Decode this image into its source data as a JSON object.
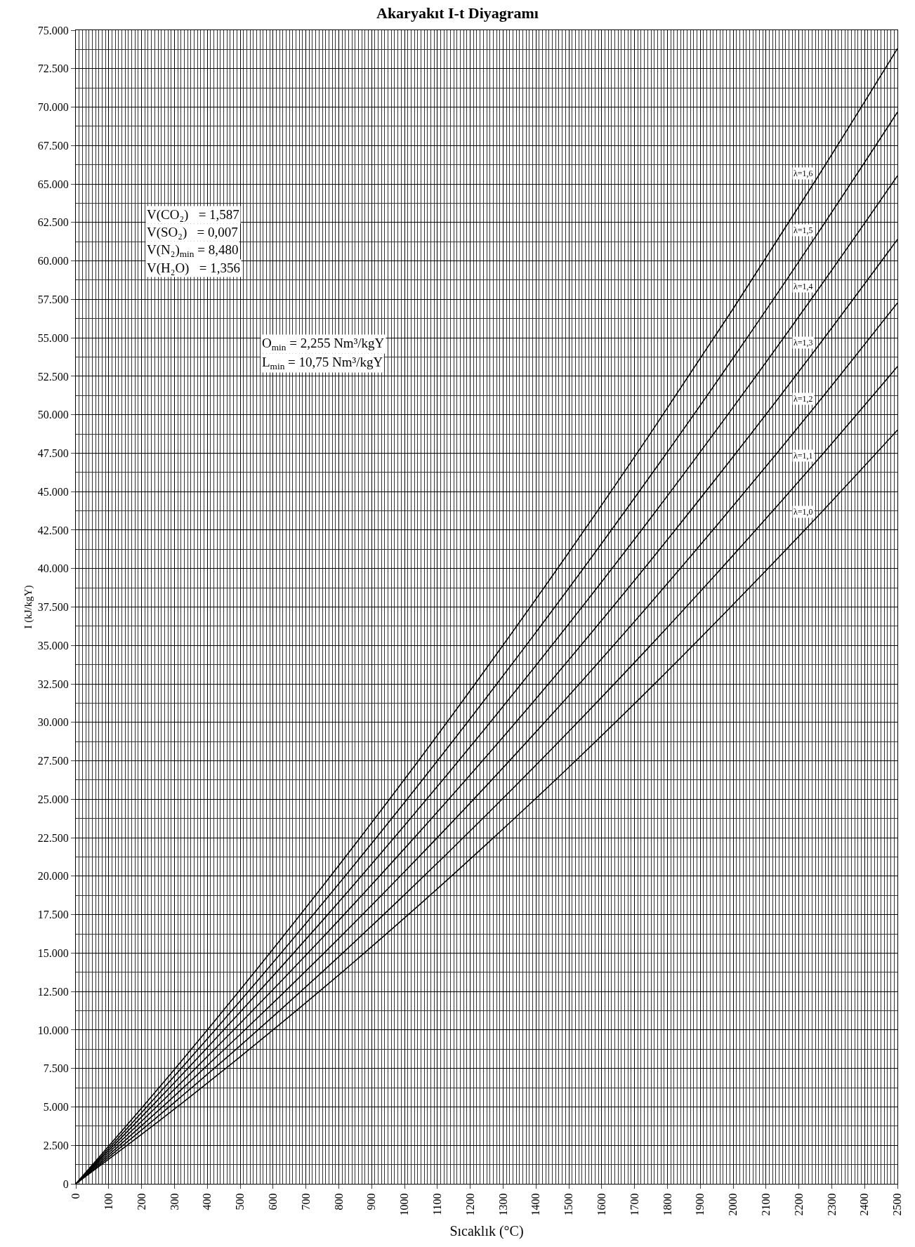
{
  "chart_data": {
    "type": "line",
    "title": "Akaryakıt I-t Diyagramı",
    "xlabel": "Sıcaklık (°C)",
    "ylabel": "I (kJ/kgY)",
    "x": [
      0,
      250,
      500,
      750,
      1000,
      1250,
      1500,
      1750,
      2000,
      2250,
      2500
    ],
    "series": [
      {
        "name": "λ=1,6",
        "color": "#000000",
        "values": [
          0,
          6170,
          12610,
          19320,
          26290,
          33540,
          41050,
          48840,
          56890,
          65210,
          73800
        ]
      },
      {
        "name": "λ=1,5",
        "color": "#000000",
        "values": [
          0,
          5810,
          11880,
          18210,
          24790,
          31630,
          38720,
          46080,
          53680,
          61550,
          69670
        ]
      },
      {
        "name": "λ=1,4",
        "color": "#000000",
        "values": [
          0,
          5460,
          11160,
          17100,
          23290,
          29720,
          36400,
          43310,
          50480,
          57880,
          65530
        ]
      },
      {
        "name": "λ=1,3",
        "color": "#000000",
        "values": [
          0,
          5100,
          10430,
          15990,
          21790,
          27810,
          34070,
          40550,
          47270,
          54220,
          61400
        ]
      },
      {
        "name": "λ=1,2",
        "color": "#000000",
        "values": [
          0,
          4740,
          9710,
          14890,
          20290,
          25900,
          31740,
          37790,
          44070,
          50560,
          57270
        ]
      },
      {
        "name": "λ=1,1",
        "color": "#000000",
        "values": [
          0,
          4390,
          8980,
          13780,
          18790,
          24000,
          29410,
          35030,
          40860,
          46890,
          53130
        ]
      },
      {
        "name": "λ=1,0",
        "color": "#000000",
        "values": [
          0,
          4030,
          8260,
          12670,
          17280,
          22090,
          27080,
          32270,
          37660,
          43230,
          49000
        ]
      }
    ],
    "xlim": [
      0,
      2500
    ],
    "ylim": [
      0,
      75000
    ],
    "xticks": [
      0,
      100,
      200,
      300,
      400,
      500,
      600,
      700,
      800,
      900,
      1000,
      1100,
      1200,
      1300,
      1400,
      1500,
      1600,
      1700,
      1800,
      1900,
      2000,
      2100,
      2200,
      2300,
      2400,
      2500
    ],
    "yticks": [
      0,
      {
        "value": 2500,
        "label": "2.500"
      },
      {
        "value": 5000,
        "label": "5.000"
      },
      {
        "value": 7500,
        "label": "7.500"
      },
      {
        "value": 10000,
        "label": "10.000"
      },
      {
        "value": 12500,
        "label": "12.500"
      },
      {
        "value": 15000,
        "label": "15.000"
      },
      {
        "value": 17500,
        "label": "17.500"
      },
      {
        "value": 20000,
        "label": "20.000"
      },
      {
        "value": 22500,
        "label": "22.500"
      },
      {
        "value": 25000,
        "label": "25.000"
      },
      {
        "value": 27500,
        "label": "27.500"
      },
      {
        "value": 30000,
        "label": "30.000"
      },
      {
        "value": 32500,
        "label": "32.500"
      },
      {
        "value": 35000,
        "label": "35.000"
      },
      {
        "value": 37500,
        "label": "37.500"
      },
      {
        "value": 40000,
        "label": "40.000"
      },
      {
        "value": 42500,
        "label": "42.500"
      },
      {
        "value": 45000,
        "label": "45.000"
      },
      {
        "value": 47500,
        "label": "47.500"
      },
      {
        "value": 50000,
        "label": "50.000"
      },
      {
        "value": 52500,
        "label": "52.500"
      },
      {
        "value": 55000,
        "label": "55.000"
      },
      {
        "value": 57500,
        "label": "57.500"
      },
      {
        "value": 60000,
        "label": "60.000"
      },
      {
        "value": 62500,
        "label": "62.500"
      },
      {
        "value": 65000,
        "label": "65.000"
      },
      {
        "value": 67500,
        "label": "67.500"
      },
      {
        "value": 70000,
        "label": "70.000"
      },
      {
        "value": 72500,
        "label": "72.500"
      },
      {
        "value": 75000,
        "label": "75.000"
      }
    ],
    "grid": true,
    "legend": false,
    "marker": "none",
    "line_style": "solid",
    "annotations": [
      "V(CO₂)   = 1,587",
      "V(SO₂)   = 0,007",
      "V(N₂)$_{min}$ = 8,480",
      "V(H₂O)   = 1,356",
      "O$_{min}$ = 2,255 Nm³/kgY",
      "L$_{min}$ = 10,75 Nm³/kgY"
    ]
  }
}
